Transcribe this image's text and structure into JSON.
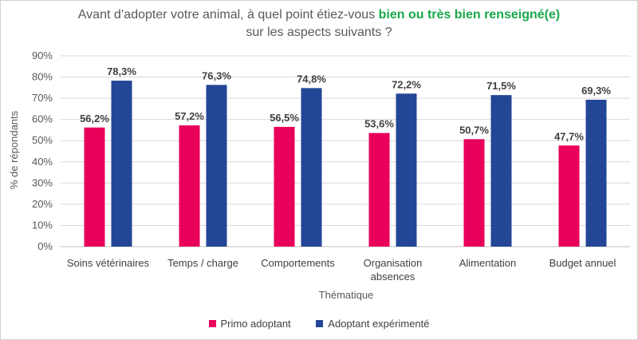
{
  "title": {
    "part1": "Avant d’adopter votre animal, à quel point étiez-vous ",
    "highlight": "bien ou très bien renseigné(e)",
    "line2": "sur les aspects suivants ?"
  },
  "colors": {
    "primo": "#e8005b",
    "experimente": "#234696",
    "highlight": "#18a84b"
  },
  "chart_data": {
    "type": "bar",
    "title": "Avant d’adopter votre animal, à quel point étiez-vous bien ou très bien renseigné(e) sur les aspects suivants ?",
    "xlabel": "Thématique",
    "ylabel": "% de répondants",
    "ylim": [
      0,
      90
    ],
    "yticks": [
      "0%",
      "10%",
      "20%",
      "30%",
      "40%",
      "50%",
      "60%",
      "70%",
      "80%",
      "90%"
    ],
    "categories": [
      "Soins vétérinaires",
      "Temps / charge",
      "Comportements",
      "Organisation absences",
      "Alimentation",
      "Budget annuel"
    ],
    "series": [
      {
        "name": "Primo adoptant",
        "values": [
          56.2,
          57.2,
          56.5,
          53.6,
          50.7,
          47.7
        ],
        "labels": [
          "56,2%",
          "57,2%",
          "56,5%",
          "53,6%",
          "50,7%",
          "47,7%"
        ]
      },
      {
        "name": "Adoptant expérimenté",
        "values": [
          78.3,
          76.3,
          74.8,
          72.2,
          71.5,
          69.3
        ],
        "labels": [
          "78,3%",
          "76,3%",
          "74,8%",
          "72,2%",
          "71,5%",
          "69,3%"
        ]
      }
    ],
    "grid": true,
    "legend": "bottom"
  }
}
